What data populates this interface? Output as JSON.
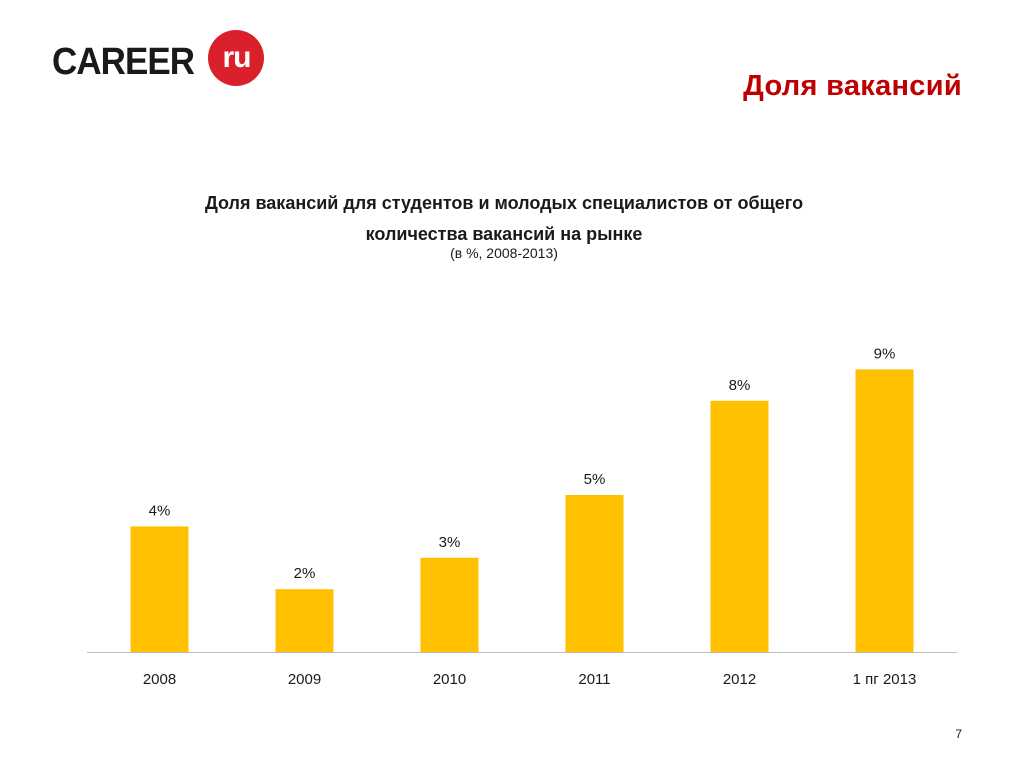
{
  "header": {
    "logo_text": "CAREER",
    "logo_badge_text": "ru",
    "slide_title": "Доля вакансий"
  },
  "chart_title_line1": "Доля вакансий для студентов и молодых специалистов от общего",
  "chart_title_line2": "количества вакансий на рынке",
  "chart_subtitle": "(в %, 2008-2013)",
  "page_number": "7",
  "colors": {
    "bar": "#FFC000",
    "title_accent": "#c00000",
    "logo_badge": "#d9202b",
    "axis": "#bfbfbf"
  },
  "chart_data": {
    "type": "bar",
    "categories": [
      "2008",
      "2009",
      "2010",
      "2011",
      "2012",
      "1 пг 2013"
    ],
    "values": [
      4,
      2,
      3,
      5,
      8,
      9
    ],
    "data_labels": [
      "4%",
      "2%",
      "3%",
      "5%",
      "8%",
      "9%"
    ],
    "ylim": [
      0,
      10
    ],
    "grid": false,
    "legend": "none"
  }
}
